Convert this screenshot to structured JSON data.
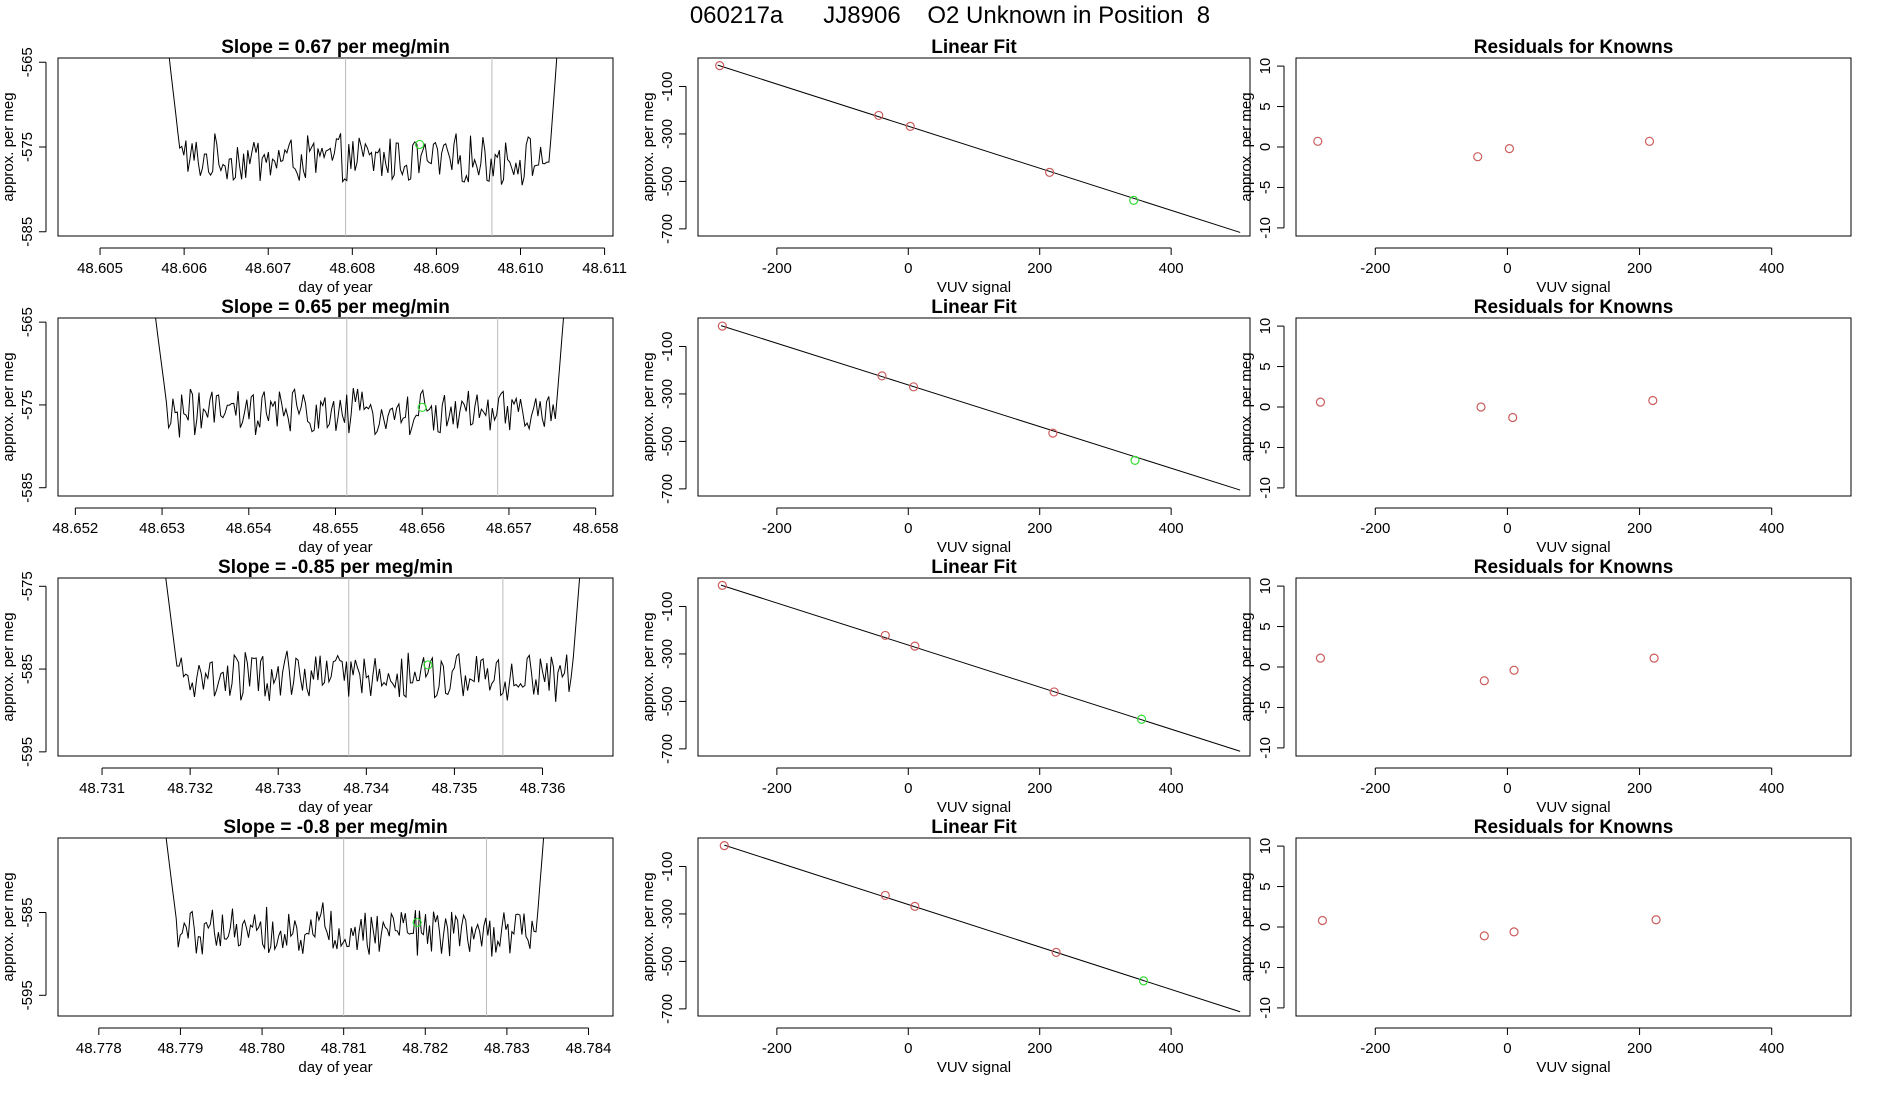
{
  "header": {
    "title": "060217a      JJ8906    O2 Unknown in Position  8"
  },
  "colors": {
    "series": "#000000",
    "known_point": "#cd5c5c",
    "unknown_point": "#33dd33",
    "vline": "#bbbbbb"
  },
  "chart_data": [
    {
      "type": "line",
      "title": "Slope =  0.67  per meg/min",
      "xlabel": "day of year",
      "ylabel": "approx. per meg",
      "xlim": [
        48.6045,
        48.6111
      ],
      "ylim": [
        -585.5,
        -564.5
      ],
      "x_ticks": [
        "48.605",
        "48.606",
        "48.607",
        "48.608",
        "48.609",
        "48.610",
        "48.611"
      ],
      "x_tick_values": [
        48.605,
        48.606,
        48.607,
        48.608,
        48.609,
        48.61,
        48.611
      ],
      "y_ticks": [
        "-565",
        "-575",
        "-585"
      ],
      "y_tick_values": [
        -565,
        -575,
        -585
      ],
      "vlines": [
        48.60792,
        48.60966
      ],
      "start": 48.6058,
      "end": 48.61046,
      "base": -576.5,
      "amp": 2.6,
      "highlight": {
        "x": 48.6088,
        "y": -574.7
      }
    },
    {
      "type": "scatter",
      "title": "Linear Fit",
      "xlabel": "VUV signal",
      "ylabel": "approx. per meg",
      "xlim": [
        -320,
        520
      ],
      "ylim": [
        -730,
        20
      ],
      "x_ticks": [
        "-200",
        "0",
        "200",
        "400"
      ],
      "x_tick_values": [
        -200,
        0,
        200,
        400
      ],
      "y_ticks": [
        "-100",
        "-300",
        "-500",
        "-700"
      ],
      "y_tick_values": [
        -100,
        -300,
        -500,
        -700
      ],
      "line": {
        "x": [
          -290,
          505
        ],
        "y": [
          -10,
          -715
        ]
      },
      "known_points": {
        "x": [
          -287,
          -45,
          3,
          215
        ],
        "y": [
          -12,
          -222,
          -268,
          -462
        ]
      },
      "unknown_point": {
        "x": 343,
        "y": -580
      }
    },
    {
      "type": "scatter",
      "title": "Residuals for Knowns",
      "xlabel": "VUV signal",
      "ylabel": "approx. per meg",
      "xlim": [
        -320,
        520
      ],
      "ylim": [
        -11,
        11
      ],
      "x_ticks": [
        "-200",
        "0",
        "200",
        "400"
      ],
      "x_tick_values": [
        -200,
        0,
        200,
        400
      ],
      "y_ticks": [
        "10",
        "5",
        "0",
        "-5",
        "-10"
      ],
      "y_tick_values": [
        10,
        5,
        0,
        -5,
        -10
      ],
      "points": {
        "x": [
          -287,
          -45,
          3,
          215
        ],
        "y": [
          0.7,
          -1.2,
          -0.2,
          0.7
        ]
      }
    },
    {
      "type": "line",
      "title": "Slope =  0.65  per meg/min",
      "xlabel": "day of year",
      "ylabel": "approx. per meg",
      "xlim": [
        48.6518,
        48.6582
      ],
      "ylim": [
        -586,
        -564.5
      ],
      "x_ticks": [
        "48.652",
        "48.653",
        "48.654",
        "48.655",
        "48.656",
        "48.657",
        "48.658"
      ],
      "x_tick_values": [
        48.652,
        48.653,
        48.654,
        48.655,
        48.656,
        48.657,
        48.658
      ],
      "y_ticks": [
        "-565",
        "-575",
        "-585"
      ],
      "y_tick_values": [
        -565,
        -575,
        -585
      ],
      "vlines": [
        48.65513,
        48.65687
      ],
      "start": 48.6529,
      "end": 48.65766,
      "base": -576.0,
      "amp": 2.6,
      "highlight": {
        "x": 48.656,
        "y": -575.3
      }
    },
    {
      "type": "scatter",
      "title": "Linear Fit",
      "xlabel": "VUV signal",
      "ylabel": "approx. per meg",
      "xlim": [
        -320,
        520
      ],
      "ylim": [
        -730,
        20
      ],
      "x_ticks": [
        "-200",
        "0",
        "200",
        "400"
      ],
      "x_tick_values": [
        -200,
        0,
        200,
        400
      ],
      "y_ticks": [
        "-100",
        "-300",
        "-500",
        "-700"
      ],
      "y_tick_values": [
        -100,
        -300,
        -500,
        -700
      ],
      "line": {
        "x": [
          -285,
          505
        ],
        "y": [
          -12,
          -705
        ]
      },
      "known_points": {
        "x": [
          -283,
          -40,
          8,
          220
        ],
        "y": [
          -14,
          -224,
          -270,
          -465
        ]
      },
      "unknown_point": {
        "x": 345,
        "y": -580
      }
    },
    {
      "type": "scatter",
      "title": "Residuals for Knowns",
      "xlabel": "VUV signal",
      "ylabel": "approx. per meg",
      "xlim": [
        -320,
        520
      ],
      "ylim": [
        -11,
        11
      ],
      "x_ticks": [
        "-200",
        "0",
        "200",
        "400"
      ],
      "x_tick_values": [
        -200,
        0,
        200,
        400
      ],
      "y_ticks": [
        "10",
        "5",
        "0",
        "-5",
        "-10"
      ],
      "y_tick_values": [
        10,
        5,
        0,
        -5,
        -10
      ],
      "points": {
        "x": [
          -283,
          -40,
          8,
          220
        ],
        "y": [
          0.6,
          0.0,
          -1.3,
          0.8
        ]
      }
    },
    {
      "type": "line",
      "title": "Slope =  -0.85  per meg/min",
      "xlabel": "day of year",
      "ylabel": "approx. per meg",
      "xlim": [
        48.7305,
        48.7368
      ],
      "ylim": [
        -595.5,
        -574
      ],
      "x_ticks": [
        "48.731",
        "48.732",
        "48.733",
        "48.734",
        "48.735",
        "48.736"
      ],
      "x_tick_values": [
        48.731,
        48.732,
        48.733,
        48.734,
        48.735,
        48.736
      ],
      "y_ticks": [
        "-575",
        "-585",
        "-595"
      ],
      "y_tick_values": [
        -575,
        -585,
        -595
      ],
      "vlines": [
        48.7338,
        48.73555
      ],
      "start": 48.7317,
      "end": 48.73645,
      "base": -586.0,
      "amp": 2.8,
      "highlight": {
        "x": 48.7347,
        "y": -584.5
      }
    },
    {
      "type": "scatter",
      "title": "Linear Fit",
      "xlabel": "VUV signal",
      "ylabel": "approx. per meg",
      "xlim": [
        -320,
        520
      ],
      "ylim": [
        -730,
        20
      ],
      "x_ticks": [
        "-200",
        "0",
        "200",
        "400"
      ],
      "x_tick_values": [
        -200,
        0,
        200,
        400
      ],
      "y_ticks": [
        "-100",
        "-300",
        "-500",
        "-700"
      ],
      "y_tick_values": [
        -100,
        -300,
        -500,
        -700
      ],
      "line": {
        "x": [
          -285,
          505
        ],
        "y": [
          -10,
          -710
        ]
      },
      "known_points": {
        "x": [
          -283,
          -35,
          10,
          222
        ],
        "y": [
          -11,
          -222,
          -267,
          -460
        ]
      },
      "unknown_point": {
        "x": 355,
        "y": -575
      }
    },
    {
      "type": "scatter",
      "title": "Residuals for Knowns",
      "xlabel": "VUV signal",
      "ylabel": "approx. per meg",
      "xlim": [
        -320,
        520
      ],
      "ylim": [
        -11,
        11
      ],
      "x_ticks": [
        "-200",
        "0",
        "200",
        "400"
      ],
      "x_tick_values": [
        -200,
        0,
        200,
        400
      ],
      "y_ticks": [
        "10",
        "5",
        "0",
        "-5",
        "-10"
      ],
      "y_tick_values": [
        10,
        5,
        0,
        -5,
        -10
      ],
      "points": {
        "x": [
          -283,
          -35,
          10,
          222
        ],
        "y": [
          1.1,
          -1.7,
          -0.4,
          1.1
        ]
      }
    },
    {
      "type": "line",
      "title": "Slope =  -0.8  per meg/min",
      "xlabel": "day of year",
      "ylabel": "approx. per meg",
      "xlim": [
        48.7775,
        48.7843
      ],
      "ylim": [
        -597.5,
        -576
      ],
      "x_ticks": [
        "48.778",
        "48.779",
        "48.780",
        "48.781",
        "48.782",
        "48.783",
        "48.784"
      ],
      "x_tick_values": [
        48.778,
        48.779,
        48.78,
        48.781,
        48.782,
        48.783,
        48.784
      ],
      "y_ticks": [
        "-585",
        "-595"
      ],
      "y_tick_values": [
        -585,
        -595
      ],
      "vlines": [
        48.781,
        48.78275
      ],
      "start": 48.7788,
      "end": 48.78348,
      "base": -587.0,
      "amp": 2.8,
      "highlight": {
        "x": 48.7819,
        "y": -586.2
      }
    },
    {
      "type": "scatter",
      "title": "Linear Fit",
      "xlabel": "VUV signal",
      "ylabel": "approx. per meg",
      "xlim": [
        -320,
        520
      ],
      "ylim": [
        -730,
        20
      ],
      "x_ticks": [
        "-200",
        "0",
        "200",
        "400"
      ],
      "x_tick_values": [
        -200,
        0,
        200,
        400
      ],
      "y_ticks": [
        "-100",
        "-300",
        "-500",
        "-700"
      ],
      "y_tick_values": [
        -100,
        -300,
        -500,
        -700
      ],
      "line": {
        "x": [
          -280,
          505
        ],
        "y": [
          -10,
          -712
        ]
      },
      "known_points": {
        "x": [
          -280,
          -35,
          10,
          225
        ],
        "y": [
          -12,
          -222,
          -268,
          -462
        ]
      },
      "unknown_point": {
        "x": 358,
        "y": -582
      }
    },
    {
      "type": "scatter",
      "title": "Residuals for Knowns",
      "xlabel": "VUV signal",
      "ylabel": "approx. per meg",
      "xlim": [
        -320,
        520
      ],
      "ylim": [
        -11,
        11
      ],
      "x_ticks": [
        "-200",
        "0",
        "200",
        "400"
      ],
      "x_tick_values": [
        -200,
        0,
        200,
        400
      ],
      "y_ticks": [
        "10",
        "5",
        "0",
        "-5",
        "-10"
      ],
      "y_tick_values": [
        10,
        5,
        0,
        -5,
        -10
      ],
      "points": {
        "x": [
          -280,
          -35,
          10,
          225
        ],
        "y": [
          0.8,
          -1.1,
          -0.6,
          0.9
        ]
      }
    }
  ]
}
